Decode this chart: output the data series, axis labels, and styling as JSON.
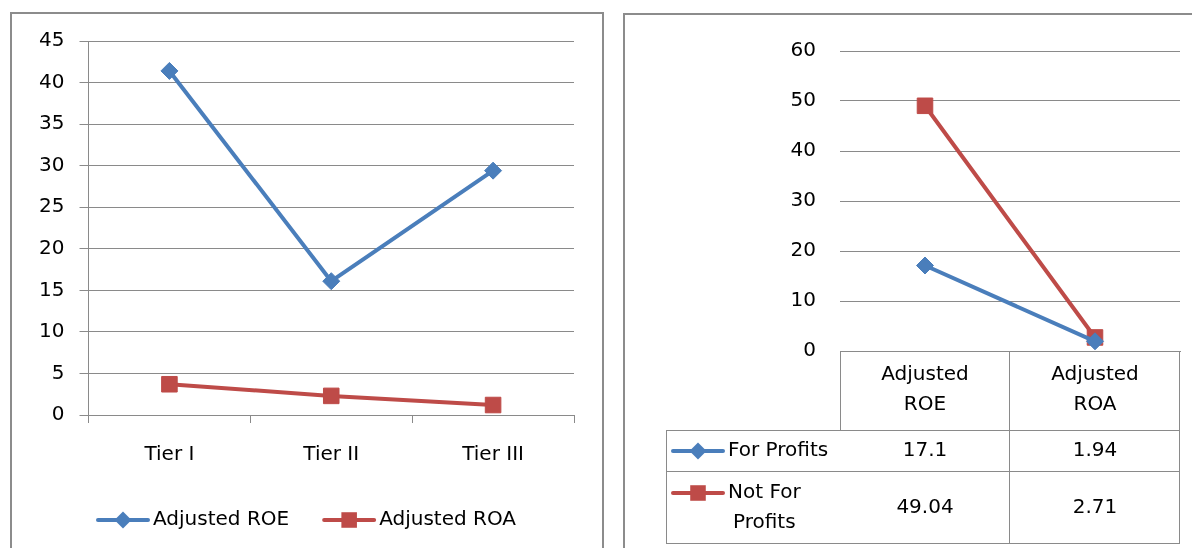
{
  "chart_data": [
    {
      "type": "line",
      "categories": [
        "Tier I",
        "Tier II",
        "Tier III"
      ],
      "series": [
        {
          "name": "Adjusted ROE",
          "color": "#4a7ebb",
          "marker": "diamond",
          "values": [
            41.4,
            16.1,
            29.4
          ]
        },
        {
          "name": "Adjusted ROA",
          "color": "#be4b48",
          "marker": "square",
          "values": [
            3.7,
            2.3,
            1.2
          ]
        }
      ],
      "ylim": [
        0,
        45
      ],
      "yticks": [
        0,
        5,
        10,
        15,
        20,
        25,
        30,
        35,
        40,
        45
      ],
      "grid": "y",
      "legend": "bottom"
    },
    {
      "type": "line",
      "categories": [
        "Adjusted ROE",
        "Adjusted ROA"
      ],
      "series": [
        {
          "name": "For Profits",
          "color": "#4a7ebb",
          "marker": "diamond",
          "values": [
            17.1,
            1.94
          ]
        },
        {
          "name": "Not For Profits",
          "color": "#be4b48",
          "marker": "square",
          "values": [
            49.04,
            2.71
          ]
        }
      ],
      "ylim": [
        0,
        60
      ],
      "yticks": [
        0,
        10,
        20,
        30,
        40,
        50,
        60
      ],
      "grid": "y",
      "legend": "bottom",
      "data_labels": true
    }
  ]
}
